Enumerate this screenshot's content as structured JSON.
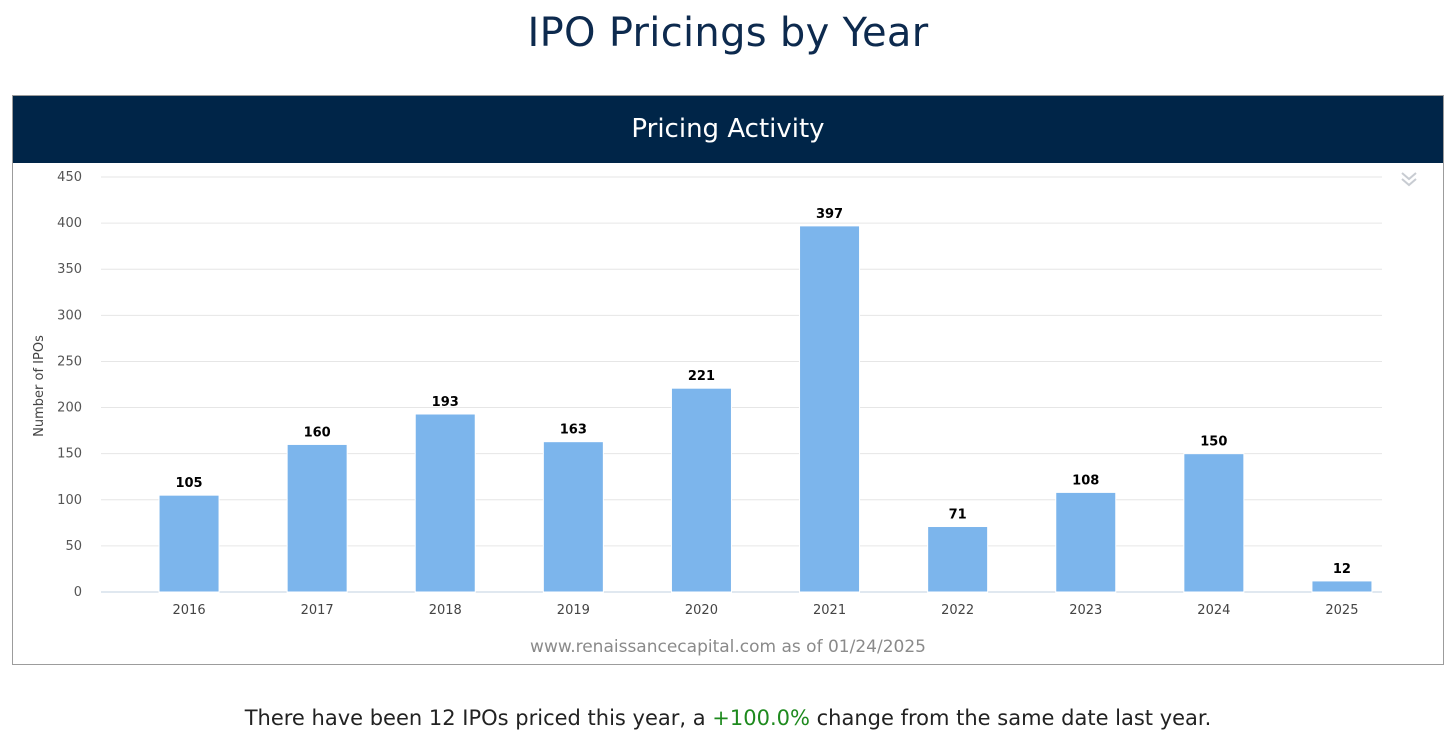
{
  "page": {
    "title": "IPO Pricings by Year"
  },
  "panel": {
    "header": "Pricing Activity",
    "source": "www.renaissancecapital.com as of 01/24/2025",
    "menu_icon": "double-chevron-down-icon"
  },
  "summary": {
    "prefix": "There have been 12 IPOs priced this year, a ",
    "change": "+100.0%",
    "suffix": " change from the same date last year.",
    "change_color": "#1e8a1e"
  },
  "chart_data": {
    "type": "bar",
    "categories": [
      "2016",
      "2017",
      "2018",
      "2019",
      "2020",
      "2021",
      "2022",
      "2023",
      "2024",
      "2025"
    ],
    "values": [
      105,
      160,
      193,
      163,
      221,
      397,
      71,
      108,
      150,
      12
    ],
    "data_labels": [
      "105",
      "160",
      "193",
      "163",
      "221",
      "397",
      "71",
      "108",
      "150",
      "12"
    ],
    "ylabel": "Number of IPOs",
    "xlabel": "",
    "ylim": [
      0,
      450
    ],
    "yticks": [
      0,
      50,
      100,
      150,
      200,
      250,
      300,
      350,
      400,
      450
    ],
    "ytick_labels": [
      "0",
      "50",
      "100",
      "150",
      "200",
      "250",
      "300",
      "350",
      "400",
      "450"
    ],
    "grid": true,
    "legend": "none",
    "bar_color": "#7cb5ec"
  }
}
